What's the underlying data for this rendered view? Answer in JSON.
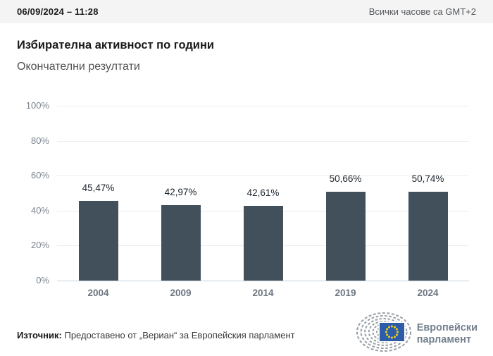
{
  "header": {
    "datetime": "06/09/2024 – 11:28",
    "timezone_note": "Всички часове са GMT+2"
  },
  "title": "Избирателна активност по години",
  "subtitle": "Окончателни резултати",
  "chart_data": {
    "type": "bar",
    "title": "Избирателна активност по години",
    "subtitle": "Окончателни резултати",
    "categories": [
      "2004",
      "2009",
      "2014",
      "2019",
      "2024"
    ],
    "values": [
      45.47,
      42.97,
      42.61,
      50.66,
      50.74
    ],
    "value_labels": [
      "45,47%",
      "42,97%",
      "42,61%",
      "50,66%",
      "50,74%"
    ],
    "xlabel": "",
    "ylabel": "",
    "ylim": [
      0,
      100
    ],
    "yticks": [
      0,
      20,
      40,
      60,
      80,
      100
    ],
    "ytick_labels": [
      "0%",
      "20%",
      "40%",
      "60%",
      "80%",
      "100%"
    ],
    "grid": true,
    "legend": "none",
    "bar_color": "#42505c"
  },
  "footer": {
    "source_label": "Източник:",
    "source_text": " Предоставено от „Вериан“ за Европейския парламент",
    "logo_line1": "Европейски",
    "logo_line2": "парламент"
  },
  "colors": {
    "bar": "#42505c",
    "topbar_bg": "#f4f4f4",
    "gridline": "#ececec",
    "axis_baseline": "#c5d2df",
    "eu_flag_blue": "#2d5da9",
    "eu_star_yellow": "#f5d018",
    "logo_gray": "#73808d"
  }
}
